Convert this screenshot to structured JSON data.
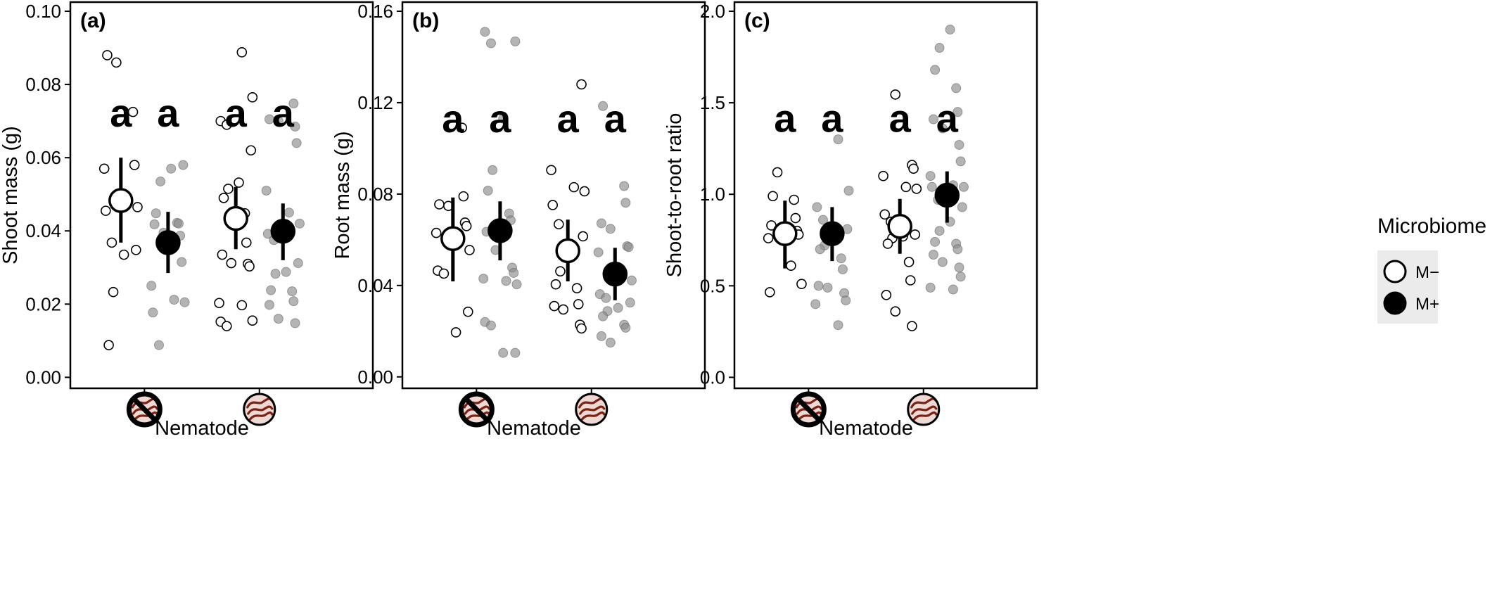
{
  "legend": {
    "title": "Microbiome",
    "entries": [
      {
        "label": "M−",
        "fill": "#ffffff"
      },
      {
        "label": "M+",
        "fill": "#000000"
      }
    ]
  },
  "colors": {
    "jitter_m_minus_fill": "#ffffff",
    "jitter_m_plus_fill": "#8c8c8c",
    "mean_m_minus_fill": "#ffffff",
    "mean_m_plus_fill": "#000000",
    "nematode_icon_fill": "#f0d8d4",
    "nematode_worm": "#7a2214"
  },
  "icons": {
    "absent": "no-nematode-icon",
    "present": "nematode-icon"
  },
  "chart_data": [
    {
      "type": "scatter",
      "panel_label": "(a)",
      "xlabel": "Nematode",
      "ylabel": "Shoot mass (g)",
      "ylim": [
        -0.003,
        0.1025
      ],
      "yticks": [
        0.0,
        0.02,
        0.04,
        0.06,
        0.08,
        0.1
      ],
      "ytick_labels": [
        "0.00",
        "0.02",
        "0.04",
        "0.06",
        "0.08",
        "0.10"
      ],
      "categories": [
        "Nematode absent",
        "Nematode present"
      ],
      "series_order": [
        "M−",
        "M+"
      ],
      "letters": [
        [
          "a",
          "a"
        ],
        [
          "a",
          "a"
        ]
      ],
      "letter_y": 0.0685,
      "means": [
        [
          {
            "mean": 0.0483,
            "lo": 0.0368,
            "hi": 0.06
          },
          {
            "mean": 0.0368,
            "lo": 0.0285,
            "hi": 0.0452
          }
        ],
        [
          {
            "mean": 0.0434,
            "lo": 0.035,
            "hi": 0.052
          },
          {
            "mean": 0.0399,
            "lo": 0.032,
            "hi": 0.0475
          }
        ]
      ],
      "points": [
        [
          [
            0.088,
            0.086,
            0.0725,
            0.058,
            0.057,
            0.0485,
            0.0465,
            0.0455,
            0.0368,
            0.0348,
            0.0335,
            0.0233,
            0.0088
          ],
          [
            0.058,
            0.057,
            0.0535,
            0.0448,
            0.0422,
            0.042,
            0.0418,
            0.0395,
            0.0387,
            0.0315,
            0.025,
            0.0212,
            0.0205,
            0.0177,
            0.0088
          ]
        ],
        [
          [
            0.0888,
            0.0765,
            0.07,
            0.069,
            0.062,
            0.0532,
            0.0515,
            0.049,
            0.0448,
            0.0368,
            0.0335,
            0.0312,
            0.031,
            0.0303,
            0.0203,
            0.0197,
            0.0155,
            0.0152,
            0.014
          ],
          [
            0.0748,
            0.0705,
            0.07,
            0.0685,
            0.064,
            0.051,
            0.045,
            0.042,
            0.0392,
            0.0375,
            0.0312,
            0.0288,
            0.0283,
            0.0238,
            0.0235,
            0.0208,
            0.0198,
            0.016,
            0.0148
          ]
        ]
      ]
    },
    {
      "type": "scatter",
      "panel_label": "(b)",
      "xlabel": "Nematode",
      "ylabel": "Root mass (g)",
      "ylim": [
        -0.005,
        0.164
      ],
      "yticks": [
        0.0,
        0.04,
        0.08,
        0.12,
        0.16
      ],
      "ytick_labels": [
        "0.00",
        "0.04",
        "0.08",
        "0.12",
        "0.16"
      ],
      "categories": [
        "Nematode absent",
        "Nematode present"
      ],
      "series_order": [
        "M−",
        "M+"
      ],
      "letters": [
        [
          "a",
          "a"
        ],
        [
          "a",
          "a"
        ]
      ],
      "letter_y": 0.107,
      "means": [
        [
          {
            "mean": 0.0605,
            "lo": 0.0418,
            "hi": 0.0785
          },
          {
            "mean": 0.064,
            "lo": 0.051,
            "hi": 0.0768
          }
        ],
        [
          {
            "mean": 0.0552,
            "lo": 0.0418,
            "hi": 0.0688
          },
          {
            "mean": 0.045,
            "lo": 0.0335,
            "hi": 0.0565
          }
        ]
      ],
      "points": [
        [
          [
            0.109,
            0.079,
            0.0755,
            0.0748,
            0.0675,
            0.066,
            0.063,
            0.0625,
            0.0555,
            0.0465,
            0.0452,
            0.0285,
            0.0195
          ],
          [
            0.151,
            0.146,
            0.1468,
            0.113,
            0.0905,
            0.0815,
            0.0715,
            0.0685,
            0.0635,
            0.0555,
            0.0478,
            0.0455,
            0.043,
            0.042,
            0.0405,
            0.024,
            0.0225,
            0.0105,
            0.0105
          ]
        ],
        [
          [
            0.128,
            0.0905,
            0.083,
            0.0812,
            0.0752,
            0.0668,
            0.0615,
            0.0525,
            0.0462,
            0.0405,
            0.0388,
            0.0318,
            0.031,
            0.0295,
            0.0228,
            0.0212
          ],
          [
            0.1185,
            0.0835,
            0.0762,
            0.0672,
            0.0648,
            0.0572,
            0.0568,
            0.0545,
            0.0465,
            0.0422,
            0.0362,
            0.0345,
            0.0325,
            0.0302,
            0.0288,
            0.0265,
            0.0228,
            0.0215,
            0.0178,
            0.015
          ]
        ]
      ]
    },
    {
      "type": "scatter",
      "panel_label": "(c)",
      "xlabel": "Nematode",
      "ylabel": "Shoot-to-root ratio",
      "ylim": [
        -0.06,
        2.05
      ],
      "yticks": [
        0.0,
        0.5,
        1.0,
        1.5,
        2.0
      ],
      "ytick_labels": [
        "0.0",
        "0.5",
        "1.0",
        "1.5",
        "2.0"
      ],
      "categories": [
        "Nematode absent",
        "Nematode present"
      ],
      "series_order": [
        "M−",
        "M+"
      ],
      "letters": [
        [
          "a",
          "a"
        ],
        [
          "a",
          "a"
        ]
      ],
      "letter_y": 1.34,
      "means": [
        [
          {
            "mean": 0.785,
            "lo": 0.595,
            "hi": 0.965
          },
          {
            "mean": 0.785,
            "lo": 0.635,
            "hi": 0.93
          }
        ],
        [
          {
            "mean": 0.825,
            "lo": 0.675,
            "hi": 0.975
          },
          {
            "mean": 0.995,
            "lo": 0.845,
            "hi": 1.125
          }
        ]
      ],
      "points": [
        [
          [
            1.12,
            0.99,
            0.97,
            0.87,
            0.83,
            0.81,
            0.8,
            0.78,
            0.76,
            0.61,
            0.51,
            0.465
          ],
          [
            1.3,
            1.02,
            0.93,
            0.86,
            0.81,
            0.8,
            0.72,
            0.7,
            0.65,
            0.59,
            0.5,
            0.49,
            0.46,
            0.42,
            0.4,
            0.285
          ]
        ],
        [
          [
            1.545,
            1.16,
            1.14,
            1.1,
            1.04,
            1.03,
            0.89,
            0.85,
            0.78,
            0.77,
            0.76,
            0.73,
            0.63,
            0.53,
            0.45,
            0.36,
            0.28
          ],
          [
            1.9,
            1.8,
            1.68,
            1.58,
            1.45,
            1.41,
            1.36,
            1.27,
            1.18,
            1.1,
            1.05,
            1.04,
            1.04,
            0.97,
            0.93,
            0.85,
            0.8,
            0.74,
            0.73,
            0.7,
            0.67,
            0.63,
            0.6,
            0.55,
            0.49,
            0.48
          ]
        ]
      ]
    }
  ]
}
